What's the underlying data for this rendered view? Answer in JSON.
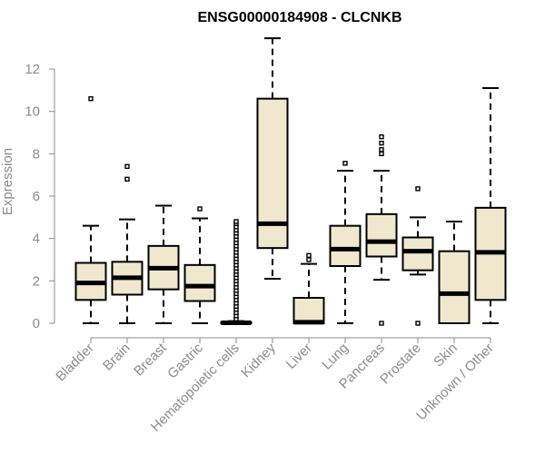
{
  "chart_data": {
    "type": "box",
    "title": "ENSG00000184908 - CLCNKB",
    "xlabel": "",
    "ylabel": "Expression",
    "ylim": [
      0,
      13.5
    ],
    "yticks": [
      "0",
      "2",
      "4",
      "6",
      "8",
      "10",
      "12"
    ],
    "box_color": "#efe8cf",
    "categories": [
      "Bladder",
      "Brain",
      "Breast",
      "Gastric",
      "Hematopoietic cells",
      "Kidney",
      "Liver",
      "Lung",
      "Pancreas",
      "Prostate",
      "Skin",
      "Unknown / Other"
    ],
    "boxes": [
      {
        "min": 0,
        "q1": 1.1,
        "median": 1.9,
        "q3": 2.85,
        "max": 4.6,
        "outliers": [
          10.6
        ]
      },
      {
        "min": 0,
        "q1": 1.35,
        "median": 2.15,
        "q3": 2.9,
        "max": 4.9,
        "outliers": [
          6.8,
          7.4
        ]
      },
      {
        "min": 0,
        "q1": 1.6,
        "median": 2.6,
        "q3": 3.65,
        "max": 5.55,
        "outliers": []
      },
      {
        "min": 0,
        "q1": 1.05,
        "median": 1.75,
        "q3": 2.75,
        "max": 4.95,
        "outliers": [
          5.4
        ]
      },
      {
        "min": 0,
        "q1": 0,
        "median": 0.02,
        "q3": 0.05,
        "max": 0.1,
        "outliers": [
          0.2,
          0.35,
          0.5,
          0.65,
          0.8,
          0.95,
          1.1,
          1.25,
          1.4,
          1.55,
          1.7,
          1.85,
          2.0,
          2.15,
          2.3,
          2.45,
          2.6,
          2.75,
          2.9,
          3.05,
          3.2,
          3.35,
          3.5,
          3.65,
          3.8,
          3.95,
          4.1,
          4.25,
          4.4,
          4.55,
          4.7,
          4.8
        ]
      },
      {
        "min": 2.1,
        "q1": 3.55,
        "median": 4.7,
        "q3": 10.6,
        "max": 13.45,
        "outliers": []
      },
      {
        "min": 0,
        "q1": 0,
        "median": 0.05,
        "q3": 1.2,
        "max": 2.8,
        "outliers": [
          3.0,
          3.2
        ]
      },
      {
        "min": 0,
        "q1": 2.7,
        "median": 3.5,
        "q3": 4.6,
        "max": 7.2,
        "outliers": [
          7.55
        ]
      },
      {
        "min": 2.05,
        "q1": 3.15,
        "median": 3.85,
        "q3": 5.15,
        "max": 7.2,
        "outliers": [
          0,
          8.0,
          8.2,
          8.5,
          8.8
        ]
      },
      {
        "min": 2.3,
        "q1": 2.5,
        "median": 3.4,
        "q3": 4.05,
        "max": 5.0,
        "outliers": [
          0,
          6.35
        ]
      },
      {
        "min": 0,
        "q1": 0,
        "median": 1.4,
        "q3": 3.4,
        "max": 4.8,
        "outliers": []
      },
      {
        "min": 0,
        "q1": 1.1,
        "median": 3.35,
        "q3": 5.45,
        "max": 11.1,
        "outliers": []
      }
    ]
  }
}
